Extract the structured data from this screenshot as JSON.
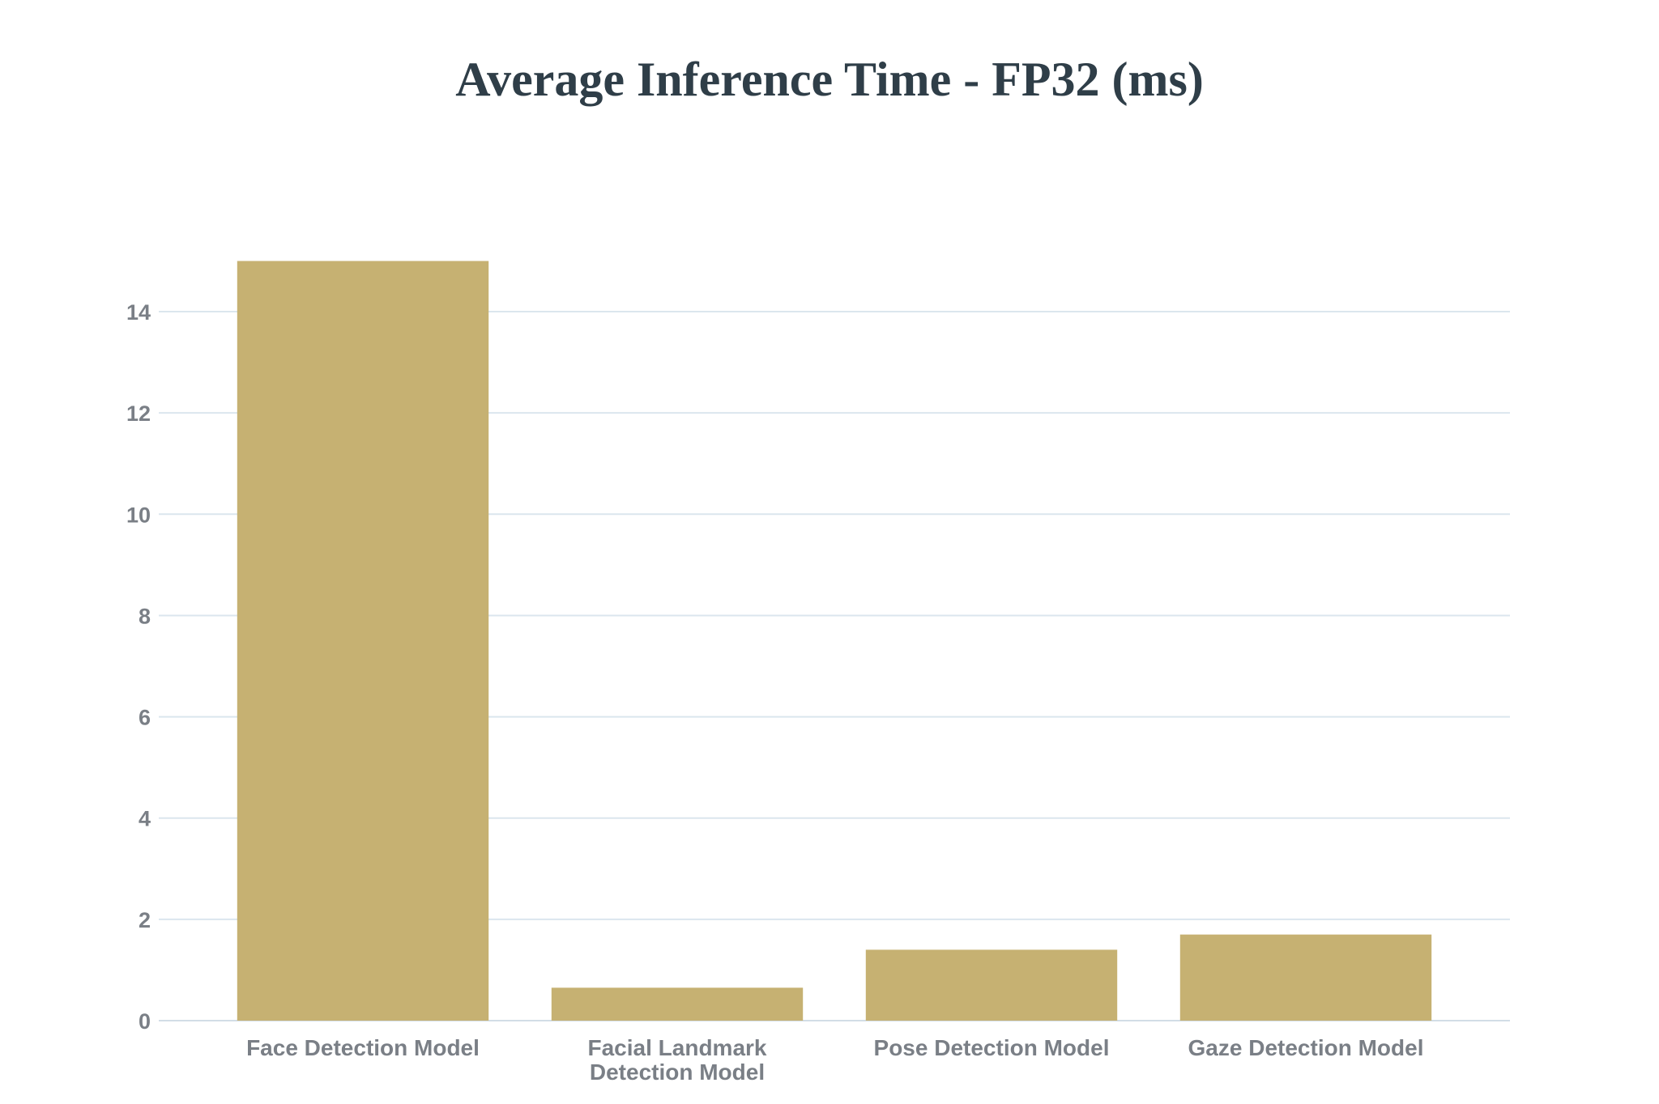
{
  "chart_data": {
    "type": "bar",
    "title": "Average Inference Time - FP32 (ms)",
    "xlabel": "",
    "ylabel": "",
    "categories": [
      "Face Detection Model",
      "Facial Landmark Detection Model",
      "Pose Detection Model",
      "Gaze Detection Model"
    ],
    "category_label_lines": [
      [
        "Face Detection Model"
      ],
      [
        "Facial Landmark",
        "Detection Model"
      ],
      [
        "Pose Detection Model"
      ],
      [
        "Gaze Detection Model"
      ]
    ],
    "values": [
      15.0,
      0.65,
      1.4,
      1.7
    ],
    "ylim": [
      0,
      15.5
    ],
    "yticks": [
      0,
      2,
      4,
      6,
      8,
      10,
      12,
      14
    ],
    "grid": true,
    "legend": "none"
  },
  "colors": {
    "bar": "#c6b172",
    "grid": "#dbe6ee",
    "title": "#2f3e48",
    "tick_text": "#7a7f86"
  }
}
